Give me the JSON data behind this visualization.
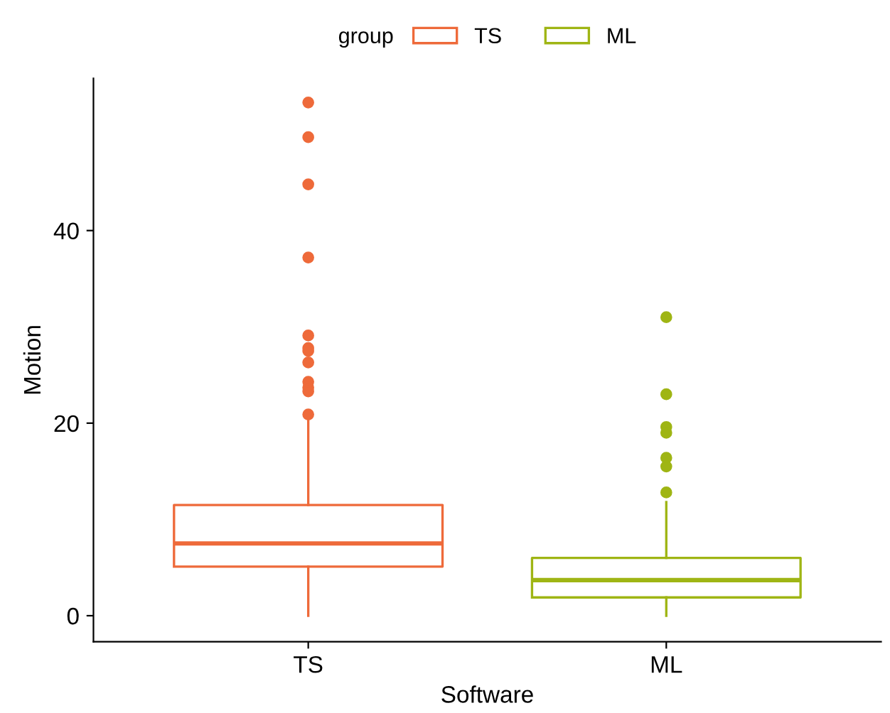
{
  "chart_data": {
    "type": "box",
    "xlabel": "Software",
    "ylabel": "Motion",
    "legend_title": "group",
    "categories": [
      "TS",
      "ML"
    ],
    "ylim": [
      -2.7,
      55.8
    ],
    "yticks": [
      0,
      20,
      40
    ],
    "grid": false,
    "legend": "top",
    "series": [
      {
        "name": "TS",
        "color": "#ee6a3a",
        "boxes": [
          {
            "low": 0,
            "q1": 5.1,
            "median": 7.5,
            "q3": 11.5,
            "high": 20.5,
            "outliers": [
              53.3,
              49.7,
              44.8,
              37.2,
              29.1,
              27.8,
              27.5,
              26.3,
              24.3,
              23.7,
              23.3,
              20.9
            ]
          },
          null
        ]
      },
      {
        "name": "ML",
        "color": "#9fb514",
        "boxes": [
          null,
          {
            "low": 0,
            "q1": 1.9,
            "median": 3.7,
            "q3": 6.0,
            "high": 11.8,
            "outliers": [
              31.0,
              23.0,
              19.6,
              19.0,
              16.4,
              15.5,
              12.8
            ]
          }
        ]
      }
    ]
  }
}
